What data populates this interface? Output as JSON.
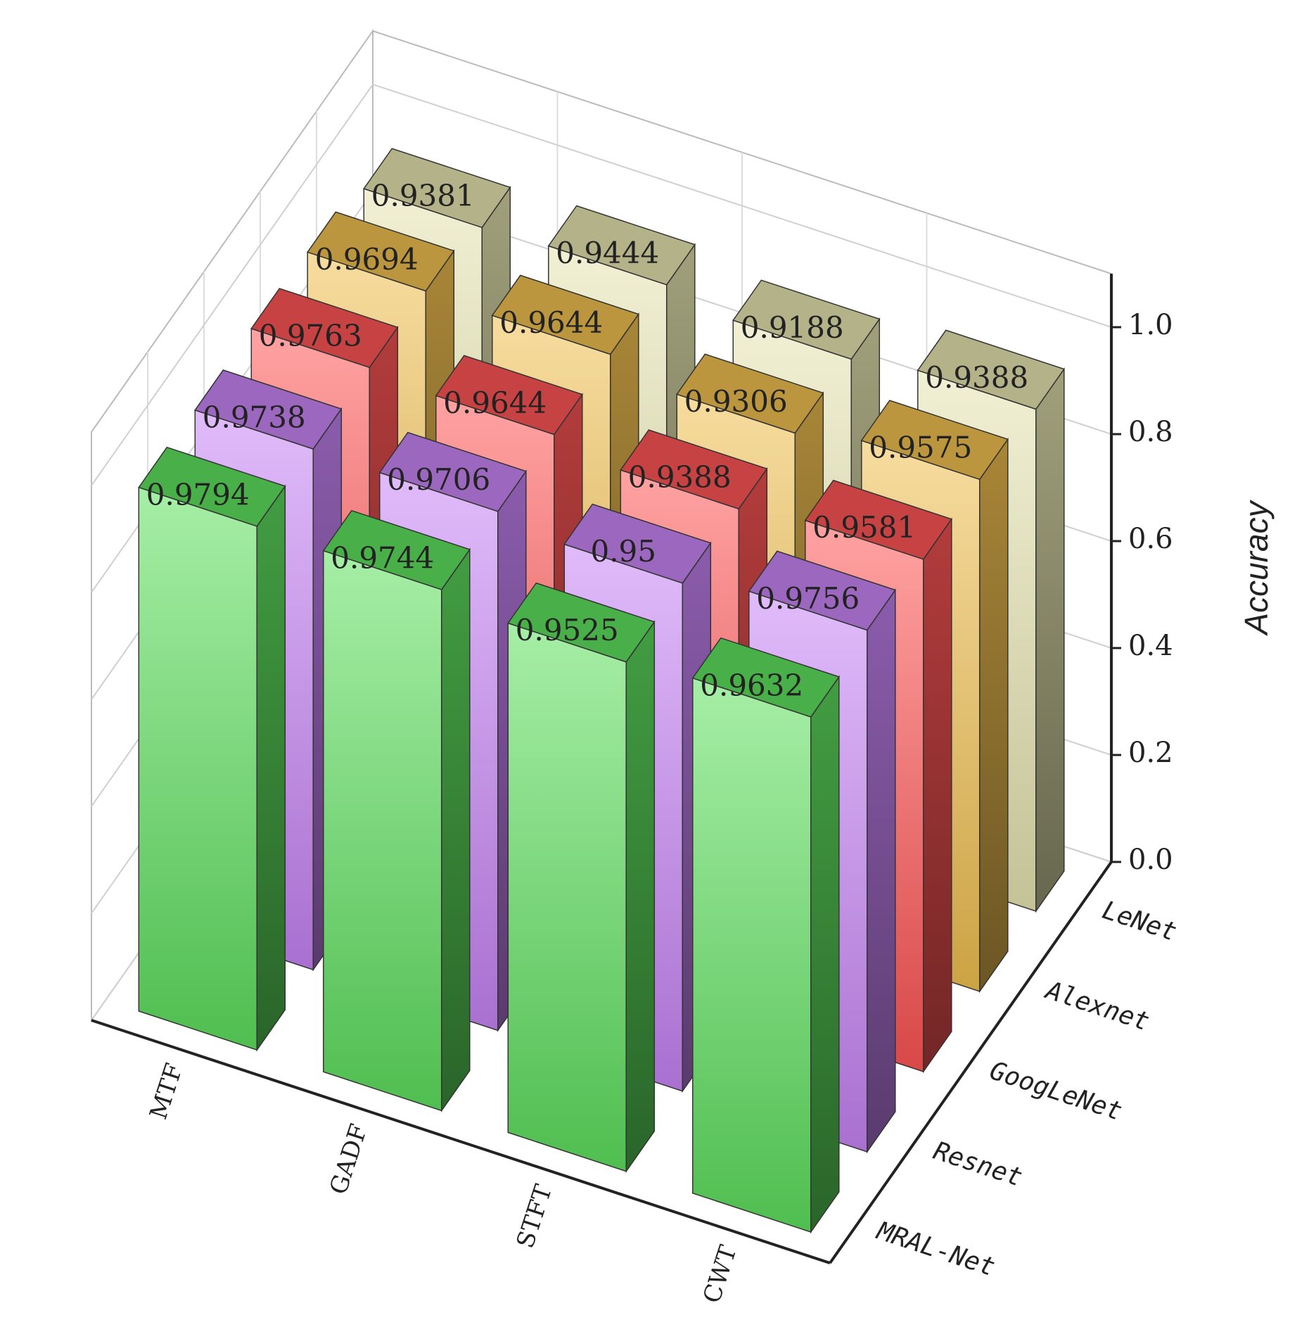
{
  "chart_data": {
    "type": "bar3d",
    "categories": [
      "MTF",
      "GADF",
      "STFT",
      "CWT"
    ],
    "series": [
      {
        "name": "MRAL-Net",
        "color": "#5ee05e",
        "values": [
          0.9794,
          0.9744,
          0.9525,
          0.9632
        ]
      },
      {
        "name": "Resnet",
        "color": "#c784f5",
        "values": [
          0.9738,
          0.9706,
          0.95,
          0.9756
        ]
      },
      {
        "name": "GoogLeNet",
        "color": "#ff5555",
        "values": [
          0.9763,
          0.9644,
          0.9388,
          0.9581
        ]
      },
      {
        "name": "Alexnet",
        "color": "#f0c050",
        "values": [
          0.9694,
          0.9644,
          0.9306,
          0.9575
        ]
      },
      {
        "name": "LeNet",
        "color": "#e6e4b0",
        "values": [
          0.9381,
          0.9444,
          0.9188,
          0.9388
        ]
      }
    ],
    "ylabel": "Accuracy",
    "ylim": [
      0,
      1.1
    ],
    "yticks": [
      {
        "value": 0,
        "label": "0.0"
      },
      {
        "value": 0.2,
        "label": "0.2"
      },
      {
        "value": 0.4,
        "label": "0.4"
      },
      {
        "value": 0.6,
        "label": "0.6"
      },
      {
        "value": 0.8,
        "label": "0.8"
      },
      {
        "value": 1,
        "label": "1.0"
      }
    ],
    "grid": true
  }
}
